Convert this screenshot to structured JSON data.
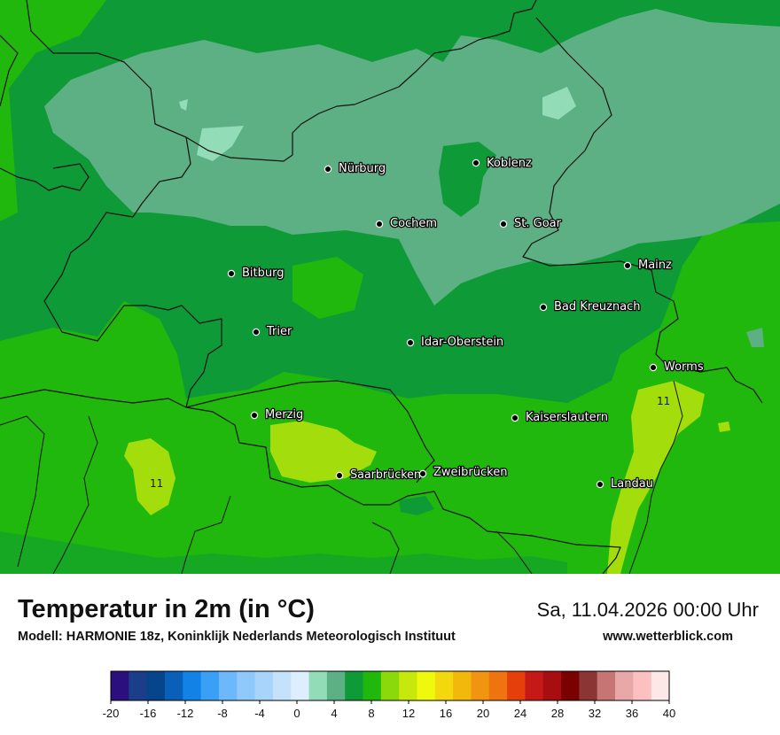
{
  "map": {
    "cities": [
      {
        "name": "Nürburg"
      },
      {
        "name": "Koblenz"
      },
      {
        "name": "Cochem"
      },
      {
        "name": "St. Goar"
      },
      {
        "name": "Bitburg"
      },
      {
        "name": "Mainz"
      },
      {
        "name": "Bad Kreuznach"
      },
      {
        "name": "Trier"
      },
      {
        "name": "Idar-Oberstein"
      },
      {
        "name": "Worms"
      },
      {
        "name": "Merzig"
      },
      {
        "name": "Kaiserslautern"
      },
      {
        "name": "Saarbrücken"
      },
      {
        "name": "Zweibrücken"
      },
      {
        "name": "Landau"
      }
    ],
    "isoline_labels": [
      "11",
      "11"
    ]
  },
  "footer": {
    "title": "Temperatur in 2m (in °C)",
    "subtitle": "Modell: HARMONIE 18z, Koninklijk Nederlands Meteorologisch Instituut",
    "datetime": "Sa, 11.04.2026 00:00 Uhr",
    "website": "www.wetterblick.com"
  },
  "legend": {
    "colors": [
      "#2c0f7e",
      "#1b3e8a",
      "#06458c",
      "#0a5fb8",
      "#1282e6",
      "#3aa0f5",
      "#6db8fb",
      "#8fc8fb",
      "#a8d4fc",
      "#c5e2fd",
      "#ddeefe",
      "#92dcb7",
      "#5daf84",
      "#0e9b37",
      "#21b80d",
      "#8cd90b",
      "#c6e90b",
      "#eef90d",
      "#f3d80d",
      "#f2b80c",
      "#f19510",
      "#ef730e",
      "#e5400c",
      "#c41916",
      "#a60e12",
      "#7b0000",
      "#8b3535",
      "#c67575",
      "#e8a8a8",
      "#fcc0c0",
      "#fde8e8"
    ],
    "ticks": [
      "-20",
      "-16",
      "-12",
      "-8",
      "-4",
      "0",
      "4",
      "8",
      "12",
      "16",
      "20",
      "24",
      "28",
      "32",
      "36",
      "40"
    ]
  }
}
